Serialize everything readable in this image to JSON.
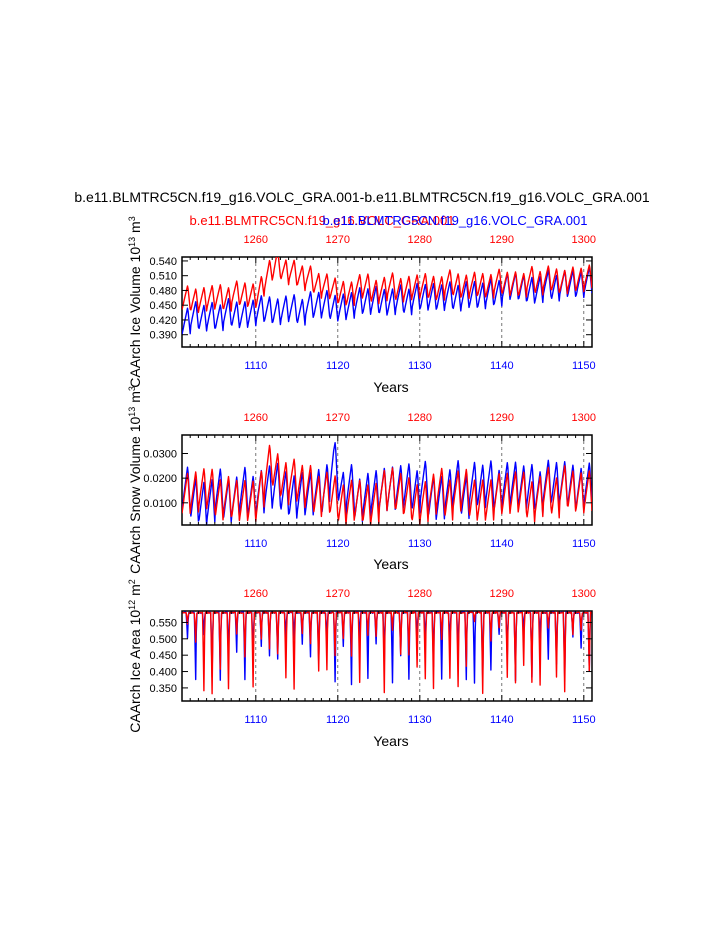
{
  "title": "b.e11.BLMTRC5CN.f19_g16.VOLC_GRA.001-b.e11.BLMTRC5CN.f19_g16.VOLC_GRA.001",
  "legend": {
    "red": "b.e11.BLMTRC5CN.f19_g16.VOLC_GRA.001",
    "blue": "b.e11.BLMTRC5CN.f19_g16.VOLC_GRA.001"
  },
  "colors": {
    "red": "#ff0000",
    "blue": "#0000ff",
    "axis": "#000000",
    "grid": "#555555"
  },
  "chart_data": [
    {
      "type": "line",
      "title": "",
      "ylabel": "CAArch Ice Volume 10^13 m^3",
      "ylabel_main": "CAArch Ice Volume 10",
      "ylabel_exp1": "13",
      "ylabel_mid": " m",
      "ylabel_exp2": "3",
      "xlabel": "Years",
      "x_bottom": [
        1110,
        1120,
        1130,
        1140,
        1150
      ],
      "x_top": [
        1260,
        1270,
        1280,
        1290,
        1300
      ],
      "xlim": [
        1101,
        1151
      ],
      "yticks": [
        "0.390",
        "0.420",
        "0.450",
        "0.480",
        "0.510",
        "0.540"
      ],
      "ytick_values": [
        0.39,
        0.42,
        0.45,
        0.48,
        0.51,
        0.54
      ],
      "ylim": [
        0.365,
        0.548
      ],
      "series": [
        {
          "name": "b.e11.BLMTRC5CN.f19_g16.VOLC_GRA.001",
          "color": "blue",
          "params": {
            "base": 0.395,
            "trend": 0.0015,
            "base_max": 0.47,
            "amp": 0.055,
            "noise": 0.008,
            "seed": 3,
            "events": []
          }
        },
        {
          "name": "b.e11.BLMTRC5CN.f19_g16.VOLC_GRA.001",
          "color": "red",
          "params": {
            "base": 0.44,
            "trend": 0.0008,
            "base_max": 0.49,
            "amp": 0.05,
            "noise": 0.008,
            "seed": 7,
            "events": [
              {
                "year": 1110,
                "peak_year": 1112.5,
                "end_year": 1120,
                "peak": 0.06
              }
            ]
          }
        }
      ]
    },
    {
      "type": "line",
      "title": "",
      "ylabel": "CAArch Snow Volume 10^13 m^3",
      "ylabel_main": "CAArch Snow Volume 10",
      "ylabel_exp1": "13",
      "ylabel_mid": " m",
      "ylabel_exp2": "3",
      "xlabel": "Years",
      "x_bottom": [
        1110,
        1120,
        1130,
        1140,
        1150
      ],
      "x_top": [
        1260,
        1270,
        1280,
        1290,
        1300
      ],
      "xlim": [
        1101,
        1151
      ],
      "yticks": [
        "0.0100",
        "0.0200",
        "0.0300"
      ],
      "ytick_values": [
        0.01,
        0.02,
        0.03
      ],
      "ylim": [
        0.001,
        0.0375
      ],
      "series": [
        {
          "name": "b.e11.BLMTRC5CN.f19_g16.VOLC_GRA.001",
          "color": "blue",
          "params": {
            "base": 0.004,
            "trend": 0.0001,
            "base_max": 0.007,
            "amp": 0.018,
            "noise": 0.004,
            "seed": 11,
            "events": [
              {
                "year": 1118,
                "peak_year": 1119.5,
                "end_year": 1121,
                "peak": 0.01
              }
            ]
          }
        },
        {
          "name": "b.e11.BLMTRC5CN.f19_g16.VOLC_GRA.001",
          "color": "red",
          "params": {
            "base": 0.005,
            "trend": 0.0,
            "base_max": 0.006,
            "amp": 0.017,
            "noise": 0.004,
            "seed": 19,
            "events": [
              {
                "year": 1110,
                "peak_year": 1112,
                "end_year": 1116,
                "peak": 0.01
              }
            ]
          }
        }
      ]
    },
    {
      "type": "line",
      "title": "",
      "ylabel": "CAArch Ice Area 10^12 m^2",
      "ylabel_main": "CAArch Ice Area 10",
      "ylabel_exp1": "12",
      "ylabel_mid": " m",
      "ylabel_exp2": "2",
      "xlabel": "Years",
      "x_bottom": [
        1110,
        1120,
        1130,
        1140,
        1150
      ],
      "x_top": [
        1260,
        1270,
        1280,
        1290,
        1300
      ],
      "xlim": [
        1101,
        1151
      ],
      "yticks": [
        "0.350",
        "0.400",
        "0.450",
        "0.500",
        "0.550"
      ],
      "ytick_values": [
        0.35,
        0.4,
        0.45,
        0.5,
        0.55
      ],
      "ylim": [
        0.31,
        0.585
      ],
      "series": [
        {
          "name": "b.e11.BLMTRC5CN.f19_g16.VOLC_GRA.001",
          "color": "blue",
          "params": {
            "top": 0.582,
            "dip_min": 0.36,
            "dip_max": 0.52,
            "seed": 5
          }
        },
        {
          "name": "b.e11.BLMTRC5CN.f19_g16.VOLC_GRA.001",
          "color": "red",
          "params": {
            "top": 0.582,
            "dip_min": 0.33,
            "dip_max": 0.56,
            "seed": 23
          }
        }
      ]
    }
  ]
}
